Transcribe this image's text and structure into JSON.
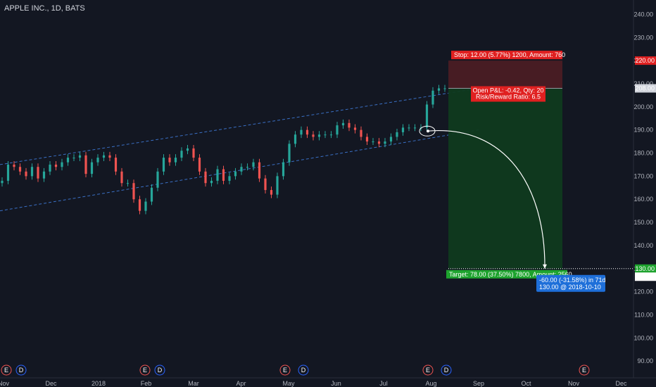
{
  "header": {
    "title": "APPLE INC., 1D, BATS"
  },
  "colors": {
    "background": "#131722",
    "up": "#26a69a",
    "down": "#ef5350",
    "channel": "#3a6fc4",
    "stop_zone": "#4a1c24",
    "target_zone": "#0f3a1f",
    "stop_label": "#e02020",
    "target_label": "#1ea32e",
    "measure_label": "#1e6fd9"
  },
  "chart_data": {
    "type": "candlestick",
    "symbol": "APPLE INC.",
    "interval": "1D",
    "exchange": "BATS",
    "y_ticks": [
      90,
      100,
      110,
      120,
      130,
      140,
      150,
      160,
      170,
      180,
      190,
      200,
      210,
      220,
      230,
      240
    ],
    "y_tick_labels": [
      "90.00",
      "100.00",
      "110.00",
      "120.00",
      "130.00",
      "140.00",
      "150.00",
      "160.00",
      "170.00",
      "180.00",
      "190.00",
      "200.00",
      "210.00",
      "220.00",
      "230.00",
      "240.00"
    ],
    "ylim": [
      87,
      245
    ],
    "x_month_labels": [
      "Nov",
      "Dec",
      "2018",
      "Feb",
      "Mar",
      "Apr",
      "May",
      "Jun",
      "Jul",
      "Aug",
      "Sep",
      "Oct",
      "Nov",
      "Dec"
    ],
    "series": [
      {
        "date": "2017-11",
        "values": [
          168,
          175,
          174,
          172,
          170,
          174
        ]
      },
      {
        "date": "2017-12",
        "values": [
          169,
          172,
          175,
          174,
          176,
          178,
          178,
          179
        ]
      },
      {
        "date": "2018-01",
        "values": [
          171,
          176,
          178,
          179,
          178,
          172,
          167
        ]
      },
      {
        "date": "2018-02",
        "values": [
          167,
          160,
          155,
          159,
          165,
          172,
          178
        ]
      },
      {
        "date": "2018-03",
        "values": [
          176,
          178,
          181,
          182,
          178,
          172,
          167,
          168,
          173
        ]
      },
      {
        "date": "2018-04",
        "values": [
          168,
          170,
          172,
          174,
          174,
          176,
          169,
          164,
          162
        ]
      },
      {
        "date": "2018-05",
        "values": [
          170,
          176,
          184,
          188,
          190,
          188,
          187,
          188,
          188
        ]
      },
      {
        "date": "2018-06",
        "values": [
          188,
          192,
          193,
          191,
          190,
          187,
          185,
          185
        ]
      },
      {
        "date": "2018-07",
        "values": [
          184,
          185,
          187,
          189,
          191,
          191,
          191
        ]
      },
      {
        "date": "2018-08",
        "values": [
          191,
          201,
          207,
          208,
          208
        ]
      }
    ],
    "position": {
      "type": "short",
      "entry": 208.0,
      "stop": 220.0,
      "target": 130.0,
      "current_marker": 129.85,
      "stop_label": "Stop: 12.00 (5.77%) 1200, Amount: 760",
      "target_label": "Target: 78.00 (37.50%) 7800, Amount: 2560",
      "open_pl_label": "Open P&L: -0.42, Qty: 20",
      "rr_label": "Risk/Reward Ratio: 6.5"
    },
    "measure": {
      "label": "-60.00 (-31.58%) in 71d",
      "sub_label": "130.00 @ 2018-10-10"
    },
    "price_labels": {
      "entry": "208.00",
      "stop": "220.00",
      "target": "130.00",
      "marker": "129.85"
    },
    "events": [
      {
        "type": "E",
        "month_index": 0
      },
      {
        "type": "D",
        "month_index": 0
      },
      {
        "type": "E",
        "month_index": 3
      },
      {
        "type": "D",
        "month_index": 3
      },
      {
        "type": "E",
        "month_index": 6
      },
      {
        "type": "D",
        "month_index": 6
      },
      {
        "type": "E",
        "month_index": 9
      },
      {
        "type": "D",
        "month_index": 9
      },
      {
        "type": "E",
        "month_index": 12
      }
    ]
  }
}
